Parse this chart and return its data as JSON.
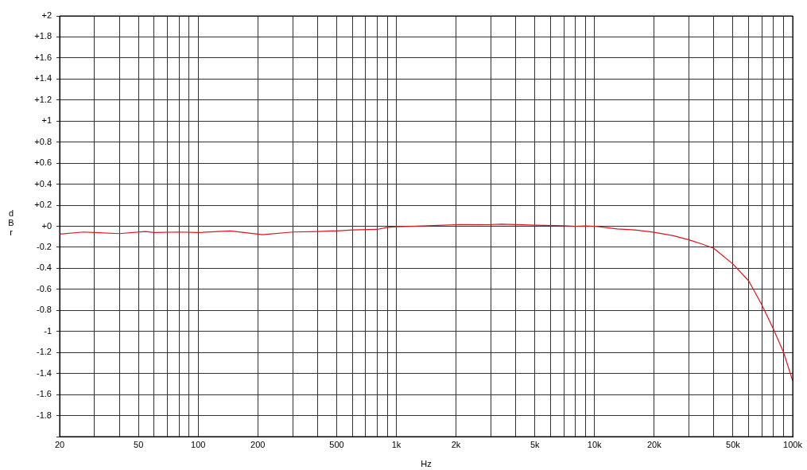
{
  "chart_data": {
    "type": "line",
    "xlabel": "Hz",
    "ylabel": "dBr",
    "log": "x",
    "grid": true,
    "marker": "none",
    "line_style": "solid",
    "xlim": [
      20,
      100000
    ],
    "ylim": [
      -2,
      2
    ],
    "xticks": [
      20,
      {
        "value": 30,
        "label": null
      },
      {
        "value": 40,
        "label": null
      },
      50,
      {
        "value": 60,
        "label": null
      },
      {
        "value": 70,
        "label": null
      },
      {
        "value": 80,
        "label": null
      },
      {
        "value": 90,
        "label": null
      },
      100,
      200,
      {
        "value": 300,
        "label": null
      },
      {
        "value": 400,
        "label": null
      },
      500,
      {
        "value": 600,
        "label": null
      },
      {
        "value": 700,
        "label": null
      },
      {
        "value": 800,
        "label": null
      },
      {
        "value": 900,
        "label": null
      },
      {
        "value": 1000,
        "label": "1k"
      },
      {
        "value": 2000,
        "label": "2k"
      },
      {
        "value": 3000,
        "label": null
      },
      {
        "value": 4000,
        "label": null
      },
      {
        "value": 5000,
        "label": "5k"
      },
      {
        "value": 6000,
        "label": null
      },
      {
        "value": 7000,
        "label": null
      },
      {
        "value": 8000,
        "label": null
      },
      {
        "value": 9000,
        "label": null
      },
      {
        "value": 10000,
        "label": "10k"
      },
      {
        "value": 20000,
        "label": "20k"
      },
      {
        "value": 30000,
        "label": null
      },
      {
        "value": 40000,
        "label": null
      },
      {
        "value": 50000,
        "label": "50k"
      },
      {
        "value": 60000,
        "label": null
      },
      {
        "value": 70000,
        "label": null
      },
      {
        "value": 80000,
        "label": null
      },
      {
        "value": 90000,
        "label": null
      },
      {
        "value": 100000,
        "label": "100k"
      }
    ],
    "yticks": [
      {
        "value": 2,
        "label": "+2"
      },
      {
        "value": 1.8,
        "label": "+1.8"
      },
      {
        "value": 1.6,
        "label": "+1.6"
      },
      {
        "value": 1.4,
        "label": "+1.4"
      },
      {
        "value": 1.2,
        "label": "+1.2"
      },
      {
        "value": 1,
        "label": "+1"
      },
      {
        "value": 0.8,
        "label": "+0.8"
      },
      {
        "value": 0.6,
        "label": "+0.6"
      },
      {
        "value": 0.4,
        "label": "+0.4"
      },
      {
        "value": 0.2,
        "label": "+0.2"
      },
      {
        "value": 0,
        "label": "+0"
      },
      {
        "value": -0.2,
        "label": "-0.2"
      },
      {
        "value": -0.4,
        "label": "-0.4"
      },
      {
        "value": -0.6,
        "label": "-0.6"
      },
      {
        "value": -0.8,
        "label": "-0.8"
      },
      {
        "value": -1,
        "label": "-1"
      },
      {
        "value": -1.2,
        "label": "-1.2"
      },
      {
        "value": -1.4,
        "label": "-1.4"
      },
      {
        "value": -1.6,
        "label": "-1.6"
      },
      {
        "value": -1.8,
        "label": "-1.8"
      },
      {
        "value": -2,
        "label": null
      }
    ],
    "series": [
      {
        "color": "#e0141e",
        "x": [
          20,
          26.4,
          30,
          40,
          54,
          60,
          80,
          100,
          145,
          200,
          211,
          300,
          405,
          470,
          500,
          600,
          800,
          900,
          1000,
          1450,
          2100,
          2900,
          3400,
          5000,
          7000,
          8000,
          9000,
          10000,
          13000,
          16000,
          20000,
          25000,
          30000,
          35000,
          40000,
          50000,
          60000,
          70000,
          80000,
          90000,
          100000
        ],
        "values": [
          -0.075,
          -0.055,
          -0.06,
          -0.07,
          -0.05,
          -0.06,
          -0.055,
          -0.06,
          -0.045,
          -0.075,
          -0.08,
          -0.055,
          -0.05,
          -0.045,
          -0.045,
          -0.035,
          -0.03,
          -0.01,
          -0.005,
          0.005,
          0.017,
          0.015,
          0.02,
          0.01,
          0.005,
          0,
          0.003,
          0,
          -0.025,
          -0.035,
          -0.058,
          -0.09,
          -0.13,
          -0.17,
          -0.21,
          -0.36,
          -0.52,
          -0.75,
          -0.98,
          -1.2,
          -1.47
        ]
      }
    ]
  }
}
